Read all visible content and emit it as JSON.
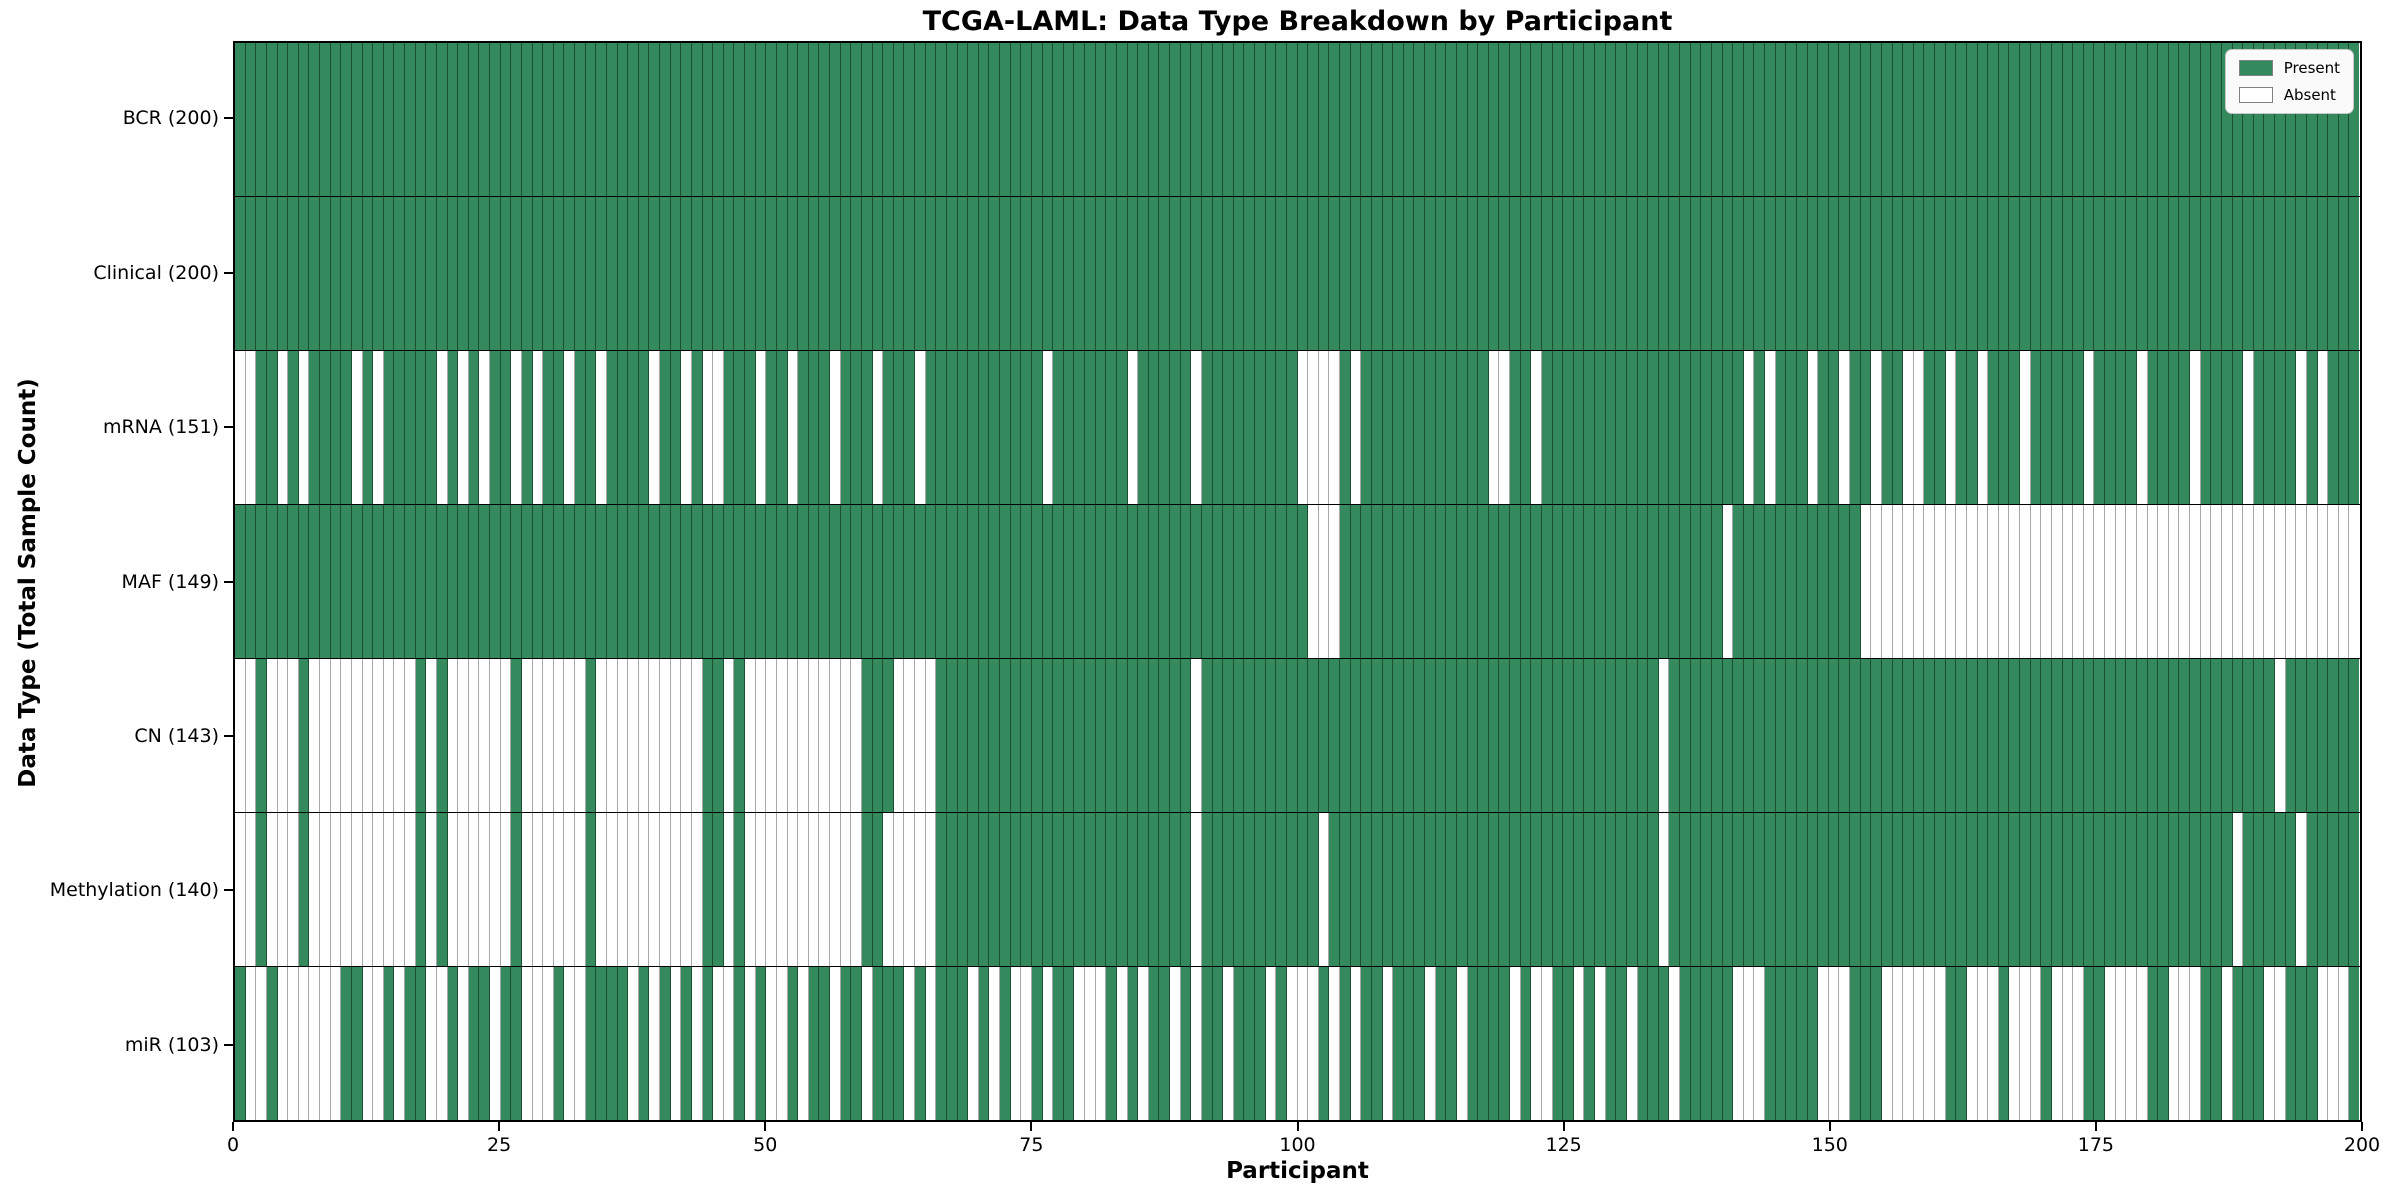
{
  "chart_data": {
    "type": "heatmap",
    "title": "TCGA-LAML: Data Type Breakdown by Participant",
    "x_axis": {
      "label": "Participant",
      "min": 0,
      "max": 200,
      "ticks": [
        0,
        25,
        50,
        75,
        100,
        125,
        150,
        175,
        200
      ]
    },
    "y_axis": {
      "label": "Data Type (Total Sample Count)"
    },
    "legend": [
      {
        "label": "Present",
        "color": "#348a5c"
      },
      {
        "label": "Absent",
        "color": "#ffffff"
      }
    ],
    "cell_colors": {
      "present": "#348a5c",
      "absent": "#ffffff"
    },
    "participants": 200,
    "grid": true,
    "rows": [
      {
        "data_type": "BCR",
        "label": "BCR (200)",
        "total_samples": 200,
        "pattern": "11111111111111111111111111111111111111111111111111111111111111111111111111111111111111111111111111111111111111111111111111111111111111111111111111111111111111111111111111111111111111111111111111111111"
      },
      {
        "data_type": "Clinical",
        "label": "Clinical (200)",
        "total_samples": 200,
        "pattern": "11111111111111111111111111111111111111111111111111111111111111111111111111111111111111111111111111111111111111111111111111111111111111111111111111111111111111111111111111111111111111111111111111111111"
      },
      {
        "data_type": "mRNA",
        "label": "mRNA (151)",
        "total_samples": 151,
        "pattern": "00110101111010111110101011010110110111101101001110110111011101110111111111110111111101111101111111110000101111111111110011011111111111111111110101110110110110011011011101111101111011110111101111010111"
      },
      {
        "data_type": "MAF",
        "label": "MAF (149)",
        "total_samples": 149,
        "pattern": "11111111111111111111111111111111111111111111111111111111111111111111111111111111111111111111111111111000111111111111111111111111111111111111011111111111100000000000000000000000000000000000000000000000"
      },
      {
        "data_type": "CN",
        "label": "CN (143)",
        "total_samples": 143,
        "pattern": "00100010000000000101000000100000010000000000110100000000000111000011111111111111111111111101111111111111111111111111111111111111111111011111111111111111111111111111111111111111111111111111111101111111"
      },
      {
        "data_type": "Methylation",
        "label": "Methylation (140)",
        "total_samples": 140,
        "pattern": "00100010000000000101000000100000010000000000110100000000000110000011111111111111111111111101111111111101111111111111111111111111111111011111111111111111111111111111111111111111111111111111011111011111"
      },
      {
        "data_type": "miR",
        "label": "miR (103)",
        "total_samples": 103,
        "pattern": "10010000001100101100101101100010011110101010100101001011011011101011101010010110001010110101101110100010101101110110111101001101011011101111100011111000111000000110001000100011000011000110111001110001"
      }
    ]
  }
}
